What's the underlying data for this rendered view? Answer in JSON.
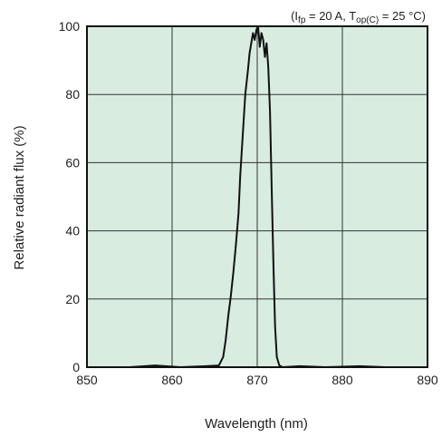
{
  "chart_data": {
    "type": "line",
    "title": "",
    "xlabel": "Wavelength (nm)",
    "ylabel": "Relative radiant flux (%)",
    "conditions": {
      "open": "(I",
      "sub1": "fp",
      "mid": " = 20 A, T",
      "sub2": "op(C)",
      "close": " = 25 °C)"
    },
    "xlim": [
      850,
      890
    ],
    "ylim": [
      0,
      100
    ],
    "xticks": [
      850,
      860,
      870,
      880,
      890
    ],
    "yticks": [
      0,
      20,
      40,
      60,
      80,
      100
    ],
    "grid": true,
    "colors": {
      "plot_background": "#d8ece0",
      "line": "#111111",
      "grid": "#333333"
    },
    "series": [
      {
        "values_x": [
          855.0,
          858.0,
          861.0,
          864.0,
          865.5,
          866.0,
          866.3,
          866.6,
          866.9,
          867.2,
          867.5,
          867.8,
          868.0,
          868.3,
          868.6,
          868.9,
          869.1,
          869.3,
          869.5,
          869.7,
          869.9,
          870.1,
          870.3,
          870.5,
          870.7,
          870.9,
          871.1,
          871.3,
          871.5,
          871.7,
          871.9,
          872.1,
          872.3,
          872.6,
          873.0,
          875.0,
          878.0,
          882.0,
          885.0
        ],
        "values_y": [
          0,
          0.5,
          0,
          0.3,
          0.5,
          3,
          8,
          15,
          21,
          28,
          36,
          45,
          56,
          68,
          80,
          87,
          92,
          95,
          98,
          96,
          99,
          100,
          94,
          98,
          96,
          91,
          95,
          88,
          75,
          52,
          30,
          12,
          3,
          0.5,
          0,
          0.3,
          0,
          0.3,
          0
        ]
      }
    ]
  }
}
